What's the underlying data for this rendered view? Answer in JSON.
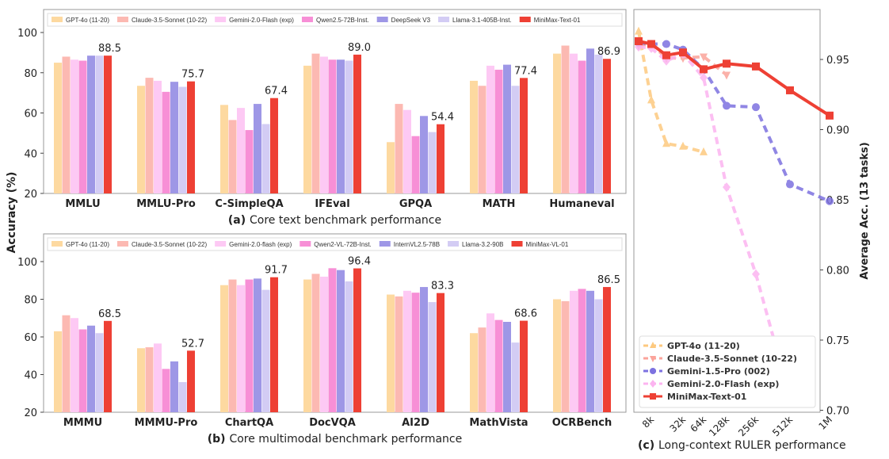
{
  "colors": [
    "#fdd9a0",
    "#fcb9b2",
    "#fdc9f4",
    "#f78fd6",
    "#9e97e6",
    "#d3ccf4",
    "#ee4034"
  ],
  "chart_data": [
    {
      "type": "bar",
      "caption_tag": "(a)",
      "caption": "Core text benchmark performance",
      "ylabel": "Accuracy (%)",
      "ylim": [
        20,
        100
      ],
      "yticks": [
        20,
        40,
        60,
        80,
        100
      ],
      "legend_position": "top",
      "categories": [
        "MMLU",
        "MMLU-Pro",
        "C-SimpleQA",
        "IFEval",
        "GPQA",
        "MATH",
        "Humaneval"
      ],
      "series": [
        {
          "name": "GPT-4o (11-20)",
          "values": [
            85.0,
            73.5,
            64.0,
            83.5,
            45.5,
            76.0,
            89.5
          ]
        },
        {
          "name": "Claude-3.5-Sonnet (10-22)",
          "values": [
            88.0,
            77.5,
            56.5,
            89.5,
            64.5,
            73.5,
            93.5
          ]
        },
        {
          "name": "Gemini-2.0-Flash (exp)",
          "values": [
            86.5,
            76.0,
            62.5,
            88.0,
            61.5,
            83.5,
            89.5
          ]
        },
        {
          "name": "Qwen2.5-72B-Inst.",
          "values": [
            86.0,
            70.5,
            51.5,
            86.5,
            48.5,
            81.5,
            86.0
          ]
        },
        {
          "name": "DeepSeek V3",
          "values": [
            88.5,
            75.5,
            64.5,
            86.5,
            58.5,
            84.0,
            92.0
          ]
        },
        {
          "name": "Llama-3.1-405B-Inst.",
          "values": [
            88.5,
            73.0,
            54.5,
            86.0,
            50.5,
            73.5,
            89.0
          ]
        },
        {
          "name": "MiniMax-Text-01",
          "values": [
            88.5,
            75.7,
            67.4,
            89.0,
            54.4,
            77.4,
            86.9
          ]
        }
      ],
      "data_labels": [
        "88.5",
        "75.7",
        "67.4",
        "89.0",
        "54.4",
        "77.4",
        "86.9"
      ]
    },
    {
      "type": "bar",
      "caption_tag": "(b)",
      "caption": "Core multimodal benchmark performance",
      "ylabel": "Accuracy (%)",
      "ylim": [
        20,
        100
      ],
      "yticks": [
        20,
        40,
        60,
        80,
        100
      ],
      "legend_position": "top",
      "categories": [
        "MMMU",
        "MMMU-Pro",
        "ChartQA",
        "DocVQA",
        "AI2D",
        "MathVista",
        "OCRBench"
      ],
      "series": [
        {
          "name": "GPT-4o (11-20)",
          "values": [
            63.0,
            54.0,
            87.5,
            90.5,
            82.5,
            62.0,
            80.0
          ]
        },
        {
          "name": "Claude-3.5-Sonnet (10-22)",
          "values": [
            71.5,
            54.5,
            90.5,
            93.5,
            81.5,
            65.0,
            79.0
          ]
        },
        {
          "name": "Gemini-2.0-flash (exp)",
          "values": [
            70.0,
            56.5,
            87.5,
            92.0,
            84.5,
            72.5,
            84.5
          ]
        },
        {
          "name": "Qwen2-VL-72B-Inst.",
          "values": [
            64.0,
            43.0,
            90.5,
            96.5,
            83.5,
            69.0,
            85.5
          ]
        },
        {
          "name": "InternVL2.5-78B",
          "values": [
            66.0,
            47.0,
            91.0,
            95.5,
            86.5,
            68.0,
            84.5
          ]
        },
        {
          "name": "Llama-3.2-90B",
          "values": [
            62.0,
            36.0,
            85.0,
            89.5,
            78.5,
            57.0,
            80.0
          ]
        },
        {
          "name": "MiniMax-VL-01",
          "values": [
            68.5,
            52.7,
            91.7,
            96.4,
            83.3,
            68.6,
            86.5
          ]
        }
      ],
      "data_labels": [
        "68.5",
        "52.7",
        "91.7",
        "96.4",
        "83.3",
        "68.6",
        "86.5"
      ]
    },
    {
      "type": "line",
      "caption_tag": "(c)",
      "caption": "Long-context RULER performance",
      "ylabel": "Average Acc. (13 tasks)",
      "ylim": [
        0.7,
        0.98
      ],
      "yticks": [
        "0.70",
        "0.75",
        "0.80",
        "0.85",
        "0.90",
        "0.95"
      ],
      "x_k": [
        4,
        8,
        16,
        32,
        64,
        128,
        256,
        512,
        1024
      ],
      "xtick_labels": [
        null,
        "8k",
        null,
        "32k",
        "64k",
        "128k",
        "256k",
        "512k",
        "1M"
      ],
      "legend_position": "lower-left",
      "series": [
        {
          "name": "GPT-4o (11-20)",
          "color": "#fdc97f",
          "marker": "triangle-up",
          "dash": true,
          "values": [
            0.97,
            0.921,
            0.89,
            0.888,
            0.884
          ]
        },
        {
          "name": "Claude-3.5-Sonnet (10-22)",
          "color": "#fba49b",
          "marker": "triangle-down",
          "dash": true,
          "values": [
            0.96,
            0.961,
            0.951,
            0.951,
            0.952,
            0.939
          ]
        },
        {
          "name": "Gemini-1.5-Pro (002)",
          "color": "#7d72e0",
          "marker": "circle",
          "dash": true,
          "values": [
            0.962,
            0.961,
            0.961,
            0.957,
            0.943,
            0.917,
            0.916,
            0.861,
            0.849
          ]
        },
        {
          "name": "Gemini-2.0-Flash (exp)",
          "color": "#fcb4f0",
          "marker": "diamond",
          "dash": true,
          "values": [
            0.959,
            0.958,
            0.949,
            0.954,
            0.937,
            0.859,
            0.797,
            0.709
          ]
        },
        {
          "name": "MiniMax-Text-01",
          "color": "#ee4034",
          "marker": "square",
          "dash": false,
          "values": [
            0.963,
            0.961,
            0.953,
            0.955,
            0.943,
            0.947,
            0.945,
            0.928,
            0.91
          ]
        }
      ]
    }
  ]
}
